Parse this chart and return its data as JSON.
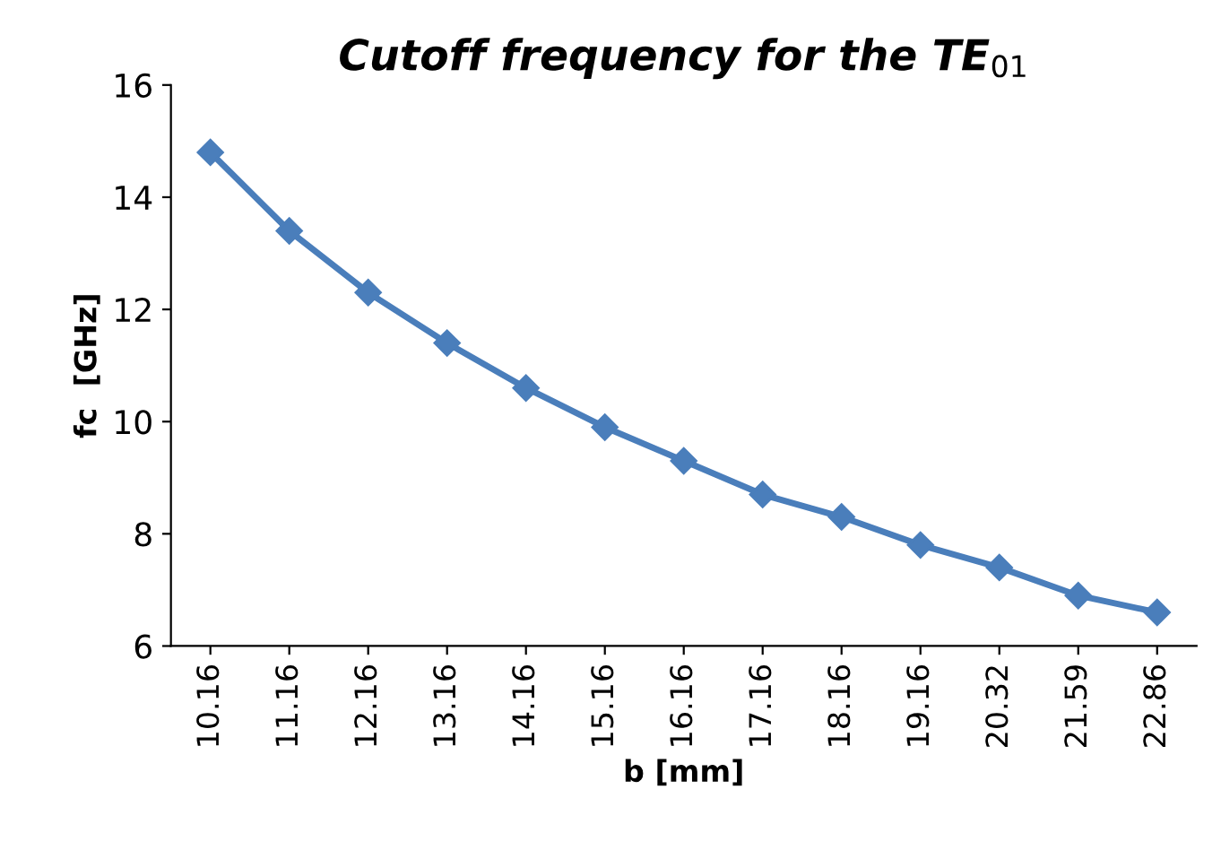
{
  "chart_data": {
    "type": "line",
    "title": "Cutoff frequency for the TE$_{01}$",
    "xlabel": "b [mm]",
    "ylabel": "fc  [GHz]",
    "categories": [
      "10.16",
      "11.16",
      "12.16",
      "13.16",
      "14.16",
      "15.16",
      "16.16",
      "17.16",
      "18.16",
      "19.16",
      "20.32",
      "21.59",
      "22.86"
    ],
    "series": [
      {
        "color": "#4a7ebb",
        "values": [
          14.8,
          13.4,
          12.3,
          11.4,
          10.6,
          9.9,
          9.3,
          8.7,
          8.3,
          7.8,
          7.4,
          6.9,
          6.6
        ]
      }
    ],
    "ylim": [
      6,
      16
    ],
    "yticks": [
      6,
      8,
      10,
      12,
      14,
      16
    ],
    "marker": "diamond",
    "line_style": "solid",
    "grid": false,
    "legend": false
  }
}
